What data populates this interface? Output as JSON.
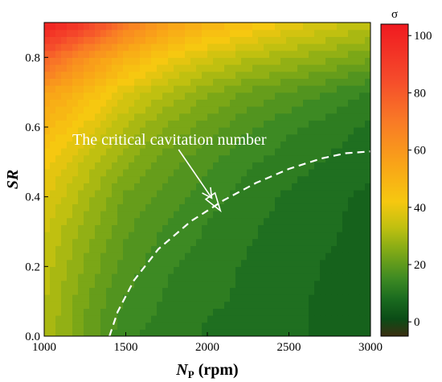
{
  "chart_data": {
    "type": "heatmap",
    "title": "",
    "xlabel": {
      "main": "N",
      "sub": "P",
      "unit": " (rpm)"
    },
    "ylabel": "SR",
    "colorbar_label": "σ",
    "xlim": [
      1000,
      3000
    ],
    "ylim": [
      0.0,
      0.9
    ],
    "zlim": [
      -5,
      104
    ],
    "x_ticks": [
      1000,
      1500,
      2000,
      2500,
      3000
    ],
    "y_ticks": [
      0.0,
      0.2,
      0.4,
      0.6,
      0.8
    ],
    "y_tick_labels": [
      "0.0",
      "0.2",
      "0.4",
      "0.6",
      "0.8"
    ],
    "colorbar_ticks": [
      0,
      20,
      40,
      60,
      80,
      100
    ],
    "grid_x": [
      1000,
      1250,
      1500,
      1750,
      2000,
      2250,
      2500,
      2750,
      3000
    ],
    "grid_y": [
      0.0,
      0.1,
      0.2,
      0.3,
      0.4,
      0.5,
      0.6,
      0.7,
      0.8,
      0.9
    ],
    "z": [
      [
        31,
        22,
        14,
        12,
        10,
        9,
        8,
        7,
        5
      ],
      [
        32,
        23,
        16,
        13,
        11,
        10,
        8,
        7,
        5
      ],
      [
        33,
        25,
        18,
        14,
        12,
        10,
        9,
        7,
        6
      ],
      [
        35,
        27,
        20,
        16,
        13,
        11,
        9,
        8,
        6
      ],
      [
        38,
        30,
        22,
        18,
        15,
        12,
        10,
        8,
        7
      ],
      [
        42,
        34,
        26,
        21,
        17,
        14,
        12,
        10,
        8
      ],
      [
        48,
        40,
        31,
        25,
        21,
        17,
        14,
        12,
        10
      ],
      [
        57,
        47,
        38,
        31,
        26,
        22,
        19,
        16,
        13
      ],
      [
        78,
        62,
        50,
        42,
        36,
        32,
        29,
        26,
        23
      ],
      [
        103,
        92,
        70,
        57,
        50,
        45,
        40,
        36,
        33
      ]
    ],
    "critical_line": {
      "x": [
        1400,
        1450,
        1550,
        1700,
        1900,
        2100,
        2300,
        2500,
        2700,
        2850,
        3000
      ],
      "y": [
        0.0,
        0.07,
        0.16,
        0.25,
        0.33,
        0.39,
        0.44,
        0.48,
        0.51,
        0.525,
        0.53
      ]
    },
    "annotation": {
      "text": "The critical cavitation number",
      "arrow_to": [
        2080,
        0.36
      ]
    }
  },
  "colors": {
    "scale": [
      "#3c2f12",
      "#0b4c16",
      "#1a6b1f",
      "#3d8a23",
      "#82aa16",
      "#c0c010",
      "#f6c810",
      "#f9a418",
      "#f97a26",
      "#f54a2b",
      "#f01a20"
    ],
    "scale_stops": [
      -5,
      1,
      8,
      15,
      25,
      33,
      42,
      55,
      70,
      85,
      104
    ],
    "critical_line": "#ffffff",
    "annotation": "#ffffff"
  }
}
